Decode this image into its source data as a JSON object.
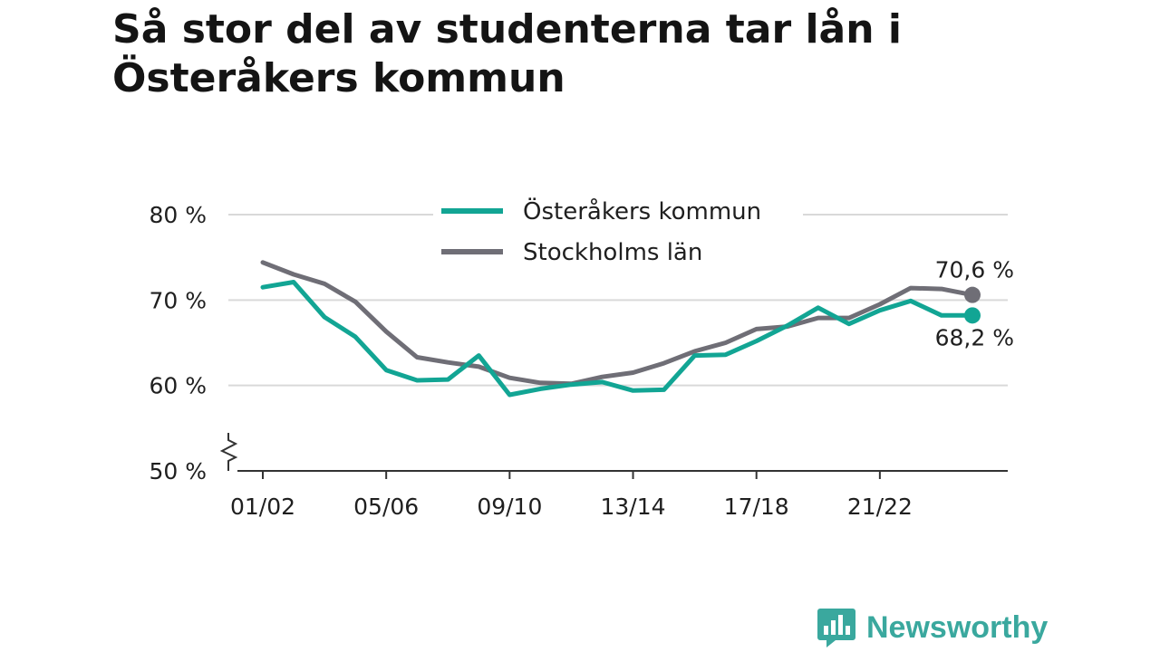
{
  "title": "Så stor del av studenterna tar lån i Österåkers kommun",
  "brand": "Newsworthy",
  "colors": {
    "series_a": "#12a594",
    "series_b": "#6f6e76",
    "grid": "#d9d9d9",
    "axis": "#333333",
    "brand": "#3aa89e"
  },
  "chart_data": {
    "type": "line",
    "title": "Så stor del av studenterna tar lån i Österåkers kommun",
    "xlabel": "",
    "ylabel": "",
    "ylim": [
      50,
      80
    ],
    "y_axis_break": true,
    "yticks": [
      50,
      60,
      70,
      80
    ],
    "ytick_labels": [
      "50 %",
      "60 %",
      "70 %",
      "80 %"
    ],
    "x": [
      "01/02",
      "02/03",
      "03/04",
      "04/05",
      "05/06",
      "06/07",
      "07/08",
      "08/09",
      "09/10",
      "10/11",
      "11/12",
      "12/13",
      "13/14",
      "14/15",
      "15/16",
      "16/17",
      "17/18",
      "18/19",
      "19/20",
      "20/21",
      "21/22",
      "22/23",
      "23/24",
      "24/25"
    ],
    "xtick_labels": [
      "01/02",
      "05/06",
      "09/10",
      "13/14",
      "17/18",
      "21/22"
    ],
    "legend_position": "top-center",
    "grid": true,
    "series": [
      {
        "name": "Österåkers kommun",
        "values": [
          71.5,
          72.1,
          68.0,
          65.7,
          61.8,
          60.6,
          60.7,
          63.5,
          58.9,
          59.6,
          60.1,
          60.4,
          59.4,
          59.5,
          63.5,
          63.6,
          65.2,
          67.0,
          69.1,
          67.2,
          68.8,
          69.9,
          68.2,
          68.2
        ],
        "end_label": "68,2 %"
      },
      {
        "name": "Stockholms län",
        "values": [
          74.4,
          73.0,
          71.9,
          69.8,
          66.3,
          63.3,
          62.7,
          62.2,
          60.9,
          60.3,
          60.2,
          61.0,
          61.5,
          62.6,
          64.0,
          65.0,
          66.6,
          66.9,
          67.9,
          67.9,
          69.5,
          71.4,
          71.3,
          70.6
        ],
        "end_label": "70,6 %"
      }
    ]
  }
}
